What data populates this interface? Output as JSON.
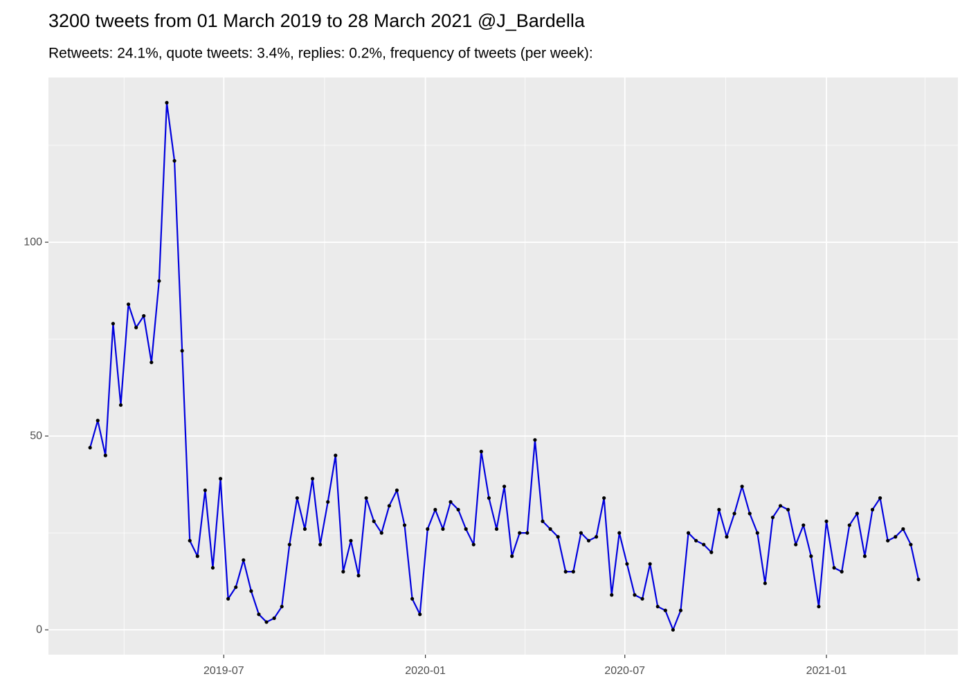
{
  "chart_data": {
    "type": "line",
    "title": "3200 tweets from 01 March 2019 to 28 March 2021 @J_Bardella",
    "subtitle": "Retweets: 24.1%, quote tweets: 3.4%, replies: 0.2%, frequency of tweets (per week):",
    "x": [
      "2019-03-01",
      "2019-03-08",
      "2019-03-15",
      "2019-03-22",
      "2019-03-29",
      "2019-04-05",
      "2019-04-12",
      "2019-04-19",
      "2019-04-26",
      "2019-05-03",
      "2019-05-10",
      "2019-05-17",
      "2019-05-24",
      "2019-05-31",
      "2019-06-07",
      "2019-06-14",
      "2019-06-21",
      "2019-06-28",
      "2019-07-05",
      "2019-07-12",
      "2019-07-19",
      "2019-07-26",
      "2019-08-02",
      "2019-08-09",
      "2019-08-16",
      "2019-08-23",
      "2019-08-30",
      "2019-09-06",
      "2019-09-13",
      "2019-09-20",
      "2019-09-27",
      "2019-10-04",
      "2019-10-11",
      "2019-10-18",
      "2019-10-25",
      "2019-11-01",
      "2019-11-08",
      "2019-11-15",
      "2019-11-22",
      "2019-11-29",
      "2019-12-06",
      "2019-12-13",
      "2019-12-20",
      "2019-12-27",
      "2020-01-03",
      "2020-01-10",
      "2020-01-17",
      "2020-01-24",
      "2020-01-31",
      "2020-02-07",
      "2020-02-14",
      "2020-02-21",
      "2020-02-28",
      "2020-03-06",
      "2020-03-13",
      "2020-03-20",
      "2020-03-27",
      "2020-04-03",
      "2020-04-10",
      "2020-04-17",
      "2020-04-24",
      "2020-05-01",
      "2020-05-08",
      "2020-05-15",
      "2020-05-22",
      "2020-05-29",
      "2020-06-05",
      "2020-06-12",
      "2020-06-19",
      "2020-06-26",
      "2020-07-03",
      "2020-07-10",
      "2020-07-17",
      "2020-07-24",
      "2020-07-31",
      "2020-08-07",
      "2020-08-14",
      "2020-08-21",
      "2020-08-28",
      "2020-09-04",
      "2020-09-11",
      "2020-09-18",
      "2020-09-25",
      "2020-10-02",
      "2020-10-09",
      "2020-10-16",
      "2020-10-23",
      "2020-10-30",
      "2020-11-06",
      "2020-11-13",
      "2020-11-20",
      "2020-11-27",
      "2020-12-04",
      "2020-12-11",
      "2020-12-18",
      "2020-12-25",
      "2021-01-01",
      "2021-01-08",
      "2021-01-15",
      "2021-01-22",
      "2021-01-29",
      "2021-02-05",
      "2021-02-12",
      "2021-02-19",
      "2021-02-26",
      "2021-03-05",
      "2021-03-12",
      "2021-03-19",
      "2021-03-26"
    ],
    "series": [
      {
        "color": "#0000dd",
        "marker_color": "#000000",
        "values": [
          47,
          54,
          45,
          79,
          58,
          84,
          78,
          81,
          69,
          90,
          136,
          121,
          72,
          23,
          19,
          36,
          16,
          39,
          8,
          11,
          18,
          10,
          4,
          2,
          3,
          6,
          22,
          34,
          26,
          39,
          22,
          33,
          45,
          15,
          23,
          14,
          34,
          28,
          25,
          32,
          36,
          27,
          8,
          4,
          26,
          31,
          26,
          33,
          31,
          26,
          22,
          46,
          34,
          26,
          37,
          19,
          25,
          25,
          49,
          28,
          26,
          24,
          15,
          15,
          25,
          23,
          24,
          34,
          9,
          25,
          17,
          9,
          8,
          17,
          6,
          5,
          0,
          5,
          25,
          23,
          22,
          20,
          31,
          24,
          30,
          37,
          30,
          25,
          12,
          29,
          32,
          31,
          22,
          27,
          19,
          6,
          28,
          16,
          15,
          27,
          30,
          19,
          31,
          34,
          23,
          24,
          26,
          22,
          13
        ]
      }
    ],
    "xlim": [
      "2019-01-22",
      "2021-05-01"
    ],
    "xticks": [
      {
        "value": "2019-07-01",
        "label": "2019-07"
      },
      {
        "value": "2020-01-01",
        "label": "2020-01"
      },
      {
        "value": "2020-07-01",
        "label": "2020-07"
      },
      {
        "value": "2021-01-01",
        "label": "2021-01"
      }
    ],
    "xminorticks": [
      "2019-04-01",
      "2019-10-01",
      "2020-04-01",
      "2020-10-01",
      "2021-04-01"
    ],
    "ylim": [
      -6.4,
      142.5
    ],
    "yticks": [
      0,
      50,
      100
    ],
    "yminorticks": [
      25,
      75,
      125
    ],
    "grid": true
  }
}
